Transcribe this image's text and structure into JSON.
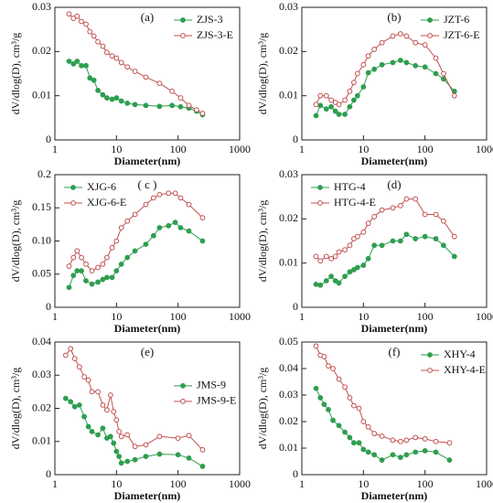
{
  "chart_data": [
    {
      "type": "line",
      "annotation": "(a)",
      "xlabel": "Diameter(nm)",
      "ylabel": "dV/dlog(D), cm³/g",
      "xscale": "log",
      "xlim": [
        1,
        1000
      ],
      "xticks": [
        1,
        10,
        100,
        1000
      ],
      "ylim": [
        0,
        0.03
      ],
      "yticks": [
        0,
        0.01,
        0.02,
        0.03
      ],
      "legend_position": "upper right",
      "x": [
        1.7,
        2,
        2.3,
        2.7,
        3.2,
        3.7,
        4.3,
        5,
        6,
        7,
        8.5,
        10,
        12,
        15,
        20,
        30,
        50,
        80,
        110,
        150,
        200,
        250
      ],
      "series": [
        {
          "name": "ZJS-3",
          "color": "#2e9e4f",
          "marker": "filled",
          "values": [
            0.0178,
            0.0172,
            0.0178,
            0.0168,
            0.0168,
            0.014,
            0.0135,
            0.0112,
            0.0102,
            0.0095,
            0.0092,
            0.0095,
            0.0088,
            0.0083,
            0.008,
            0.0078,
            0.0076,
            0.0078,
            0.0075,
            0.0072,
            0.0065,
            0.0057
          ]
        },
        {
          "name": "ZJS-3-E",
          "color": "#c0504d",
          "marker": "open",
          "values": [
            0.0285,
            0.0275,
            0.028,
            0.0268,
            0.0262,
            0.0245,
            0.0235,
            0.0222,
            0.0212,
            0.0198,
            0.019,
            0.0185,
            0.0175,
            0.0165,
            0.0155,
            0.0142,
            0.0128,
            0.011,
            0.0095,
            0.0078,
            0.0068,
            0.006
          ]
        }
      ]
    },
    {
      "type": "line",
      "annotation": "(b)",
      "xlabel": "Diameter(nm)",
      "ylabel": "dV/dlog(D), cm³/g",
      "xscale": "log",
      "xlim": [
        1,
        1000
      ],
      "xticks": [
        1,
        10,
        100,
        1000
      ],
      "ylim": [
        0,
        0.03
      ],
      "yticks": [
        0,
        0.01,
        0.02,
        0.03
      ],
      "legend_position": "upper right",
      "x": [
        1.7,
        2,
        2.5,
        3,
        3.5,
        4,
        5,
        6,
        7,
        8,
        10,
        12,
        15,
        20,
        30,
        40,
        50,
        70,
        100,
        150,
        200,
        300
      ],
      "series": [
        {
          "name": "JZT-6",
          "color": "#2e9e4f",
          "marker": "filled",
          "values": [
            0.0055,
            0.0078,
            0.007,
            0.0075,
            0.0065,
            0.0058,
            0.0058,
            0.0075,
            0.009,
            0.01,
            0.012,
            0.0152,
            0.016,
            0.017,
            0.0175,
            0.018,
            0.0175,
            0.0168,
            0.0165,
            0.015,
            0.0138,
            0.011
          ]
        },
        {
          "name": "JZT-6-E",
          "color": "#c0504d",
          "marker": "open",
          "values": [
            0.008,
            0.01,
            0.01,
            0.009,
            0.0085,
            0.008,
            0.009,
            0.011,
            0.013,
            0.015,
            0.017,
            0.019,
            0.0205,
            0.022,
            0.0235,
            0.024,
            0.0235,
            0.022,
            0.0215,
            0.0185,
            0.015,
            0.01
          ]
        }
      ]
    },
    {
      "type": "line",
      "annotation": "( c )",
      "xlabel": "Diameter(nm)",
      "ylabel": "dV/dlog(D), cm³/g",
      "xscale": "log",
      "xlim": [
        1,
        1000
      ],
      "xticks": [
        1,
        10,
        100,
        1000
      ],
      "ylim": [
        0,
        0.2
      ],
      "yticks": [
        0,
        0.05,
        {
          "value": 0.1,
          "label": "0.10"
        },
        0.15,
        0.2
      ],
      "legend_position": "upper left",
      "x": [
        1.7,
        2,
        2.3,
        2.7,
        3.2,
        4,
        5,
        6,
        7,
        8.5,
        10,
        12,
        15,
        20,
        30,
        40,
        50,
        70,
        90,
        110,
        150,
        250
      ],
      "series": [
        {
          "name": "XJG-6",
          "color": "#2e9e4f",
          "marker": "filled",
          "values": [
            0.03,
            0.048,
            0.055,
            0.055,
            0.04,
            0.035,
            0.038,
            0.042,
            0.045,
            0.045,
            0.055,
            0.065,
            0.075,
            0.085,
            0.095,
            0.108,
            0.12,
            0.123,
            0.128,
            0.12,
            0.115,
            0.1
          ]
        },
        {
          "name": "XJG-6-E",
          "color": "#c0504d",
          "marker": "open",
          "values": [
            0.062,
            0.075,
            0.085,
            0.075,
            0.065,
            0.055,
            0.06,
            0.065,
            0.075,
            0.09,
            0.1,
            0.12,
            0.13,
            0.14,
            0.155,
            0.165,
            0.17,
            0.172,
            0.172,
            0.165,
            0.155,
            0.135
          ]
        }
      ]
    },
    {
      "type": "line",
      "annotation": "(d)",
      "xlabel": "Diameter(nm)",
      "ylabel": "dV/dlog(D), cm³/g",
      "xscale": "log",
      "xlim": [
        1,
        1000
      ],
      "xticks": [
        1,
        10,
        100,
        1000
      ],
      "ylim": [
        0,
        0.03
      ],
      "yticks": [
        0,
        0.01,
        0.02,
        0.03
      ],
      "legend_position": "upper left",
      "x": [
        1.7,
        2,
        2.5,
        3,
        3.5,
        4,
        5,
        6,
        7,
        8,
        10,
        12,
        15,
        20,
        30,
        40,
        50,
        70,
        100,
        150,
        200,
        300
      ],
      "series": [
        {
          "name": "HTG-4",
          "color": "#2e9e4f",
          "marker": "filled",
          "values": [
            0.0052,
            0.005,
            0.006,
            0.007,
            0.006,
            0.0055,
            0.007,
            0.008,
            0.0085,
            0.009,
            0.0095,
            0.011,
            0.014,
            0.014,
            0.015,
            0.015,
            0.0165,
            0.0155,
            0.016,
            0.0155,
            0.014,
            0.0115
          ]
        },
        {
          "name": "HTG-4-E",
          "color": "#c0504d",
          "marker": "open",
          "values": [
            0.0115,
            0.0105,
            0.0115,
            0.011,
            0.0115,
            0.0125,
            0.013,
            0.014,
            0.0155,
            0.016,
            0.017,
            0.019,
            0.0205,
            0.022,
            0.0225,
            0.023,
            0.0245,
            0.0245,
            0.021,
            0.021,
            0.0195,
            0.016
          ]
        }
      ]
    },
    {
      "type": "line",
      "annotation": "(e)",
      "xlabel": "Diameter(nm)",
      "ylabel": "dV/dlog(D), cm³/g",
      "xscale": "log",
      "xlim": [
        1,
        1000
      ],
      "xticks": [
        1,
        10,
        100,
        1000
      ],
      "ylim": [
        0,
        0.04
      ],
      "yticks": [
        0,
        0.01,
        0.02,
        0.03,
        0.04
      ],
      "legend_position": "right",
      "x": [
        1.5,
        1.8,
        2.1,
        2.5,
        3,
        3.5,
        4,
        5,
        6,
        7,
        8,
        9,
        10,
        11,
        12,
        15,
        20,
        30,
        50,
        100,
        150,
        250
      ],
      "series": [
        {
          "name": "JMS-9",
          "color": "#2e9e4f",
          "marker": "filled",
          "values": [
            0.023,
            0.022,
            0.0205,
            0.021,
            0.0175,
            0.0145,
            0.013,
            0.012,
            0.014,
            0.011,
            0.0115,
            0.0095,
            0.007,
            0.0055,
            0.0035,
            0.004,
            0.0045,
            0.0055,
            0.0062,
            0.006,
            0.005,
            0.0025
          ]
        },
        {
          "name": "JMS-9-E",
          "color": "#c0504d",
          "marker": "open",
          "values": [
            0.036,
            0.038,
            0.035,
            0.0325,
            0.0295,
            0.0285,
            0.025,
            0.025,
            0.021,
            0.0195,
            0.024,
            0.019,
            0.0165,
            0.013,
            0.0115,
            0.012,
            0.0085,
            0.009,
            0.0115,
            0.011,
            0.0118,
            0.0075
          ]
        }
      ]
    },
    {
      "type": "line",
      "annotation": "(f)",
      "xlabel": "Diameter(nm)",
      "ylabel": "dV/dlog(D), cm³/g",
      "xscale": "log",
      "xlim": [
        1,
        1000
      ],
      "xticks": [
        1,
        10,
        100,
        1000
      ],
      "ylim": [
        0,
        0.05
      ],
      "yticks": [
        0,
        0.01,
        0.02,
        0.03,
        0.04,
        0.05
      ],
      "legend_position": "upper right",
      "x": [
        1.7,
        2,
        2.3,
        2.7,
        3.2,
        4,
        5,
        6,
        7,
        8.5,
        10,
        12,
        15,
        20,
        30,
        40,
        50,
        70,
        100,
        150,
        250
      ],
      "series": [
        {
          "name": "XHY-4",
          "color": "#2e9e4f",
          "marker": "filled",
          "values": [
            0.0325,
            0.029,
            0.0265,
            0.0245,
            0.0205,
            0.0185,
            0.016,
            0.014,
            0.012,
            0.012,
            0.0095,
            0.0085,
            0.0075,
            0.0055,
            0.0075,
            0.0065,
            0.0075,
            0.0085,
            0.009,
            0.0085,
            0.0055
          ]
        },
        {
          "name": "XHY-4-E",
          "color": "#c0504d",
          "marker": "open",
          "values": [
            0.0485,
            0.045,
            0.0445,
            0.041,
            0.04,
            0.036,
            0.033,
            0.029,
            0.026,
            0.025,
            0.02,
            0.018,
            0.0155,
            0.0145,
            0.013,
            0.0125,
            0.013,
            0.014,
            0.0135,
            0.0125,
            0.012
          ]
        }
      ]
    }
  ]
}
